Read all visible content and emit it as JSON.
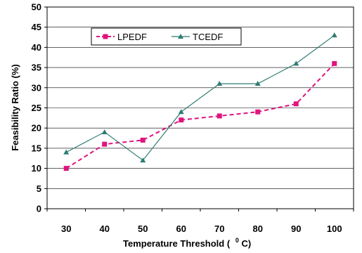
{
  "chart_data": {
    "type": "line",
    "x": [
      30,
      40,
      50,
      60,
      70,
      80,
      90,
      100
    ],
    "xlabel": "Temperature Threshold (",
    "xlabel_unit_sup": "0",
    "xlabel_unit": "C)",
    "ylabel": "Feasibility Ratio (%)",
    "ylim": [
      0,
      50
    ],
    "yticks": [
      "0",
      "5",
      "10",
      "15",
      "20",
      "25",
      "30",
      "35",
      "40",
      "45",
      "50"
    ],
    "xticks": [
      "30",
      "40",
      "50",
      "60",
      "70",
      "80",
      "90",
      "100"
    ],
    "grid": true,
    "legend_position": "top-left",
    "series": [
      {
        "name": "LPEDF",
        "values": [
          10,
          16,
          17,
          22,
          23,
          24,
          26,
          36
        ],
        "color": "#e0137f",
        "dash": true,
        "marker": "square"
      },
      {
        "name": "TCEDF",
        "values": [
          14,
          19,
          12,
          24,
          31,
          31,
          36,
          43
        ],
        "color": "#2e7b72",
        "dash": false,
        "marker": "triangle"
      }
    ]
  }
}
